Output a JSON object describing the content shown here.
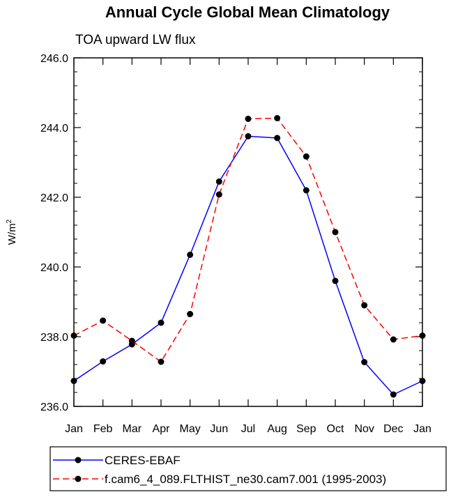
{
  "chart_data": {
    "type": "line",
    "title": "Annual Cycle Global Mean Climatology",
    "subtitle": "TOA upward LW flux",
    "ylabel": "W/m",
    "ylabel_sup": "2",
    "xlabel": "",
    "categories": [
      "Jan",
      "Feb",
      "Mar",
      "Apr",
      "May",
      "Jun",
      "Jul",
      "Aug",
      "Sep",
      "Oct",
      "Nov",
      "Dec",
      "Jan"
    ],
    "ylim": [
      236.0,
      246.0
    ],
    "yticks": [
      "236.0",
      "238.0",
      "240.0",
      "242.0",
      "244.0",
      "246.0"
    ],
    "ytick_values": [
      236,
      238,
      240,
      242,
      244,
      246
    ],
    "series": [
      {
        "name": "CERES-EBAF",
        "color": "#0000ff",
        "dash": "solid",
        "values": [
          236.73,
          237.29,
          237.78,
          238.4,
          240.35,
          242.45,
          243.75,
          243.7,
          242.2,
          239.6,
          237.27,
          236.34,
          236.73
        ]
      },
      {
        "name": "f.cam6_4_089.FLTHIST_ne30.cam7.001 (1995-2003)",
        "color": "#ff0000",
        "dash": "dashed",
        "values": [
          238.03,
          238.46,
          237.88,
          237.28,
          238.65,
          242.08,
          244.25,
          244.27,
          243.17,
          241.0,
          238.9,
          237.92,
          238.03
        ]
      }
    ],
    "legend_position": "bottom",
    "grid": false
  }
}
